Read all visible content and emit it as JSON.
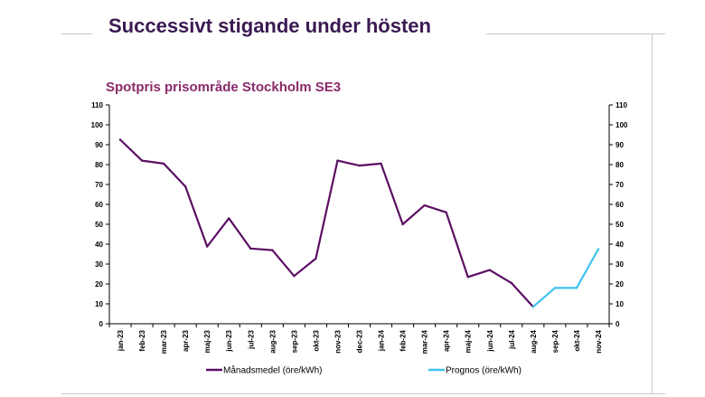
{
  "slide": {
    "title": "Successivt stigande under hösten"
  },
  "chart_data": {
    "type": "line",
    "title": "Spotpris prisområde Stockholm SE3",
    "xlabel": "",
    "ylabel": "",
    "ylim": [
      0,
      110
    ],
    "yticks": [
      0,
      10,
      20,
      30,
      40,
      50,
      60,
      70,
      80,
      90,
      100,
      110
    ],
    "grid": false,
    "legend_position": "bottom",
    "categories": [
      "jan-23",
      "feb-23",
      "mar-23",
      "apr-23",
      "maj-23",
      "jun-23",
      "jul-23",
      "aug-23",
      "sep-23",
      "okt-23",
      "nov-23",
      "dec-23",
      "jan-24",
      "feb-24",
      "mar-24",
      "apr-24",
      "maj-24",
      "jun-24",
      "jul-24",
      "aug-24",
      "sep-24",
      "okt-24",
      "nov-24"
    ],
    "series": [
      {
        "name": "Månadsmedel (öre/kWh)",
        "color": "#5b0f63",
        "values": [
          92.5,
          82,
          80.5,
          69,
          38.8,
          53,
          37.8,
          37,
          24,
          32.8,
          82,
          79.5,
          80.5,
          50,
          59.5,
          56,
          23.5,
          27,
          20.5,
          8.5,
          null,
          null,
          null
        ]
      },
      {
        "name": "Prognos (öre/kWh)",
        "color": "#3fc3ef",
        "values": [
          null,
          null,
          null,
          null,
          null,
          null,
          null,
          null,
          null,
          null,
          null,
          null,
          null,
          null,
          null,
          null,
          null,
          null,
          null,
          8.5,
          18,
          18,
          37.5
        ]
      }
    ]
  }
}
